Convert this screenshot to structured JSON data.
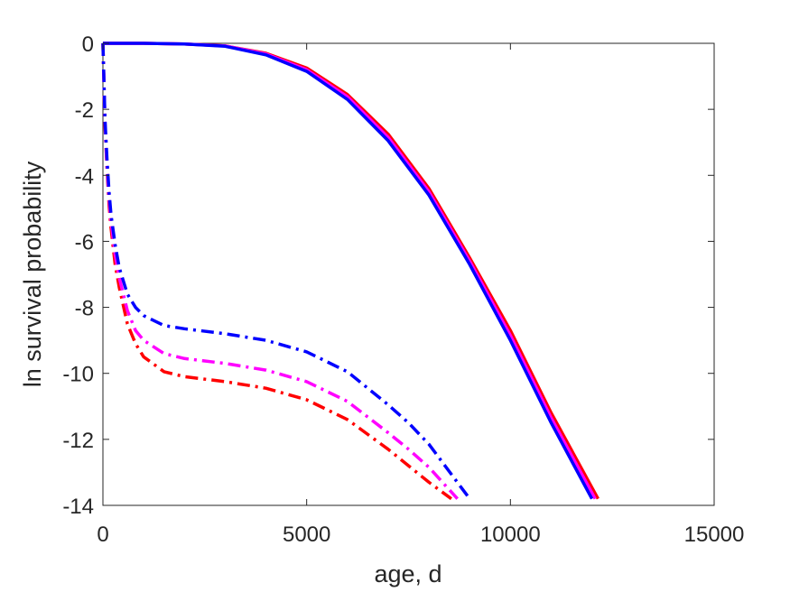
{
  "chart_data": {
    "type": "line",
    "title": "",
    "xlabel": "age, d",
    "ylabel": "ln survival probability",
    "xlim": [
      0,
      15000
    ],
    "ylim": [
      -14,
      0
    ],
    "xticks": [
      0,
      5000,
      10000,
      15000
    ],
    "yticks": [
      0,
      -2,
      -4,
      -6,
      -8,
      -10,
      -12,
      -14
    ],
    "grid": false,
    "legend": "none",
    "series": [
      {
        "color": "#ff0000",
        "style": "solid",
        "x": [
          0,
          1000,
          2000,
          3000,
          4000,
          5000,
          6000,
          7000,
          8000,
          9000,
          10000,
          11000,
          12150
        ],
        "y": [
          0,
          0,
          -0.02,
          -0.08,
          -0.3,
          -0.75,
          -1.55,
          -2.75,
          -4.4,
          -6.5,
          -8.7,
          -11.2,
          -13.8
        ]
      },
      {
        "color": "#ff00ff",
        "style": "solid",
        "x": [
          0,
          1000,
          2000,
          3000,
          4000,
          5000,
          6000,
          7000,
          8000,
          9000,
          10000,
          11000,
          12080
        ],
        "y": [
          0,
          0,
          -0.02,
          -0.08,
          -0.32,
          -0.8,
          -1.62,
          -2.85,
          -4.5,
          -6.6,
          -8.85,
          -11.35,
          -13.8
        ]
      },
      {
        "color": "#0000ff",
        "style": "solid",
        "x": [
          0,
          1000,
          2000,
          3000,
          4000,
          5000,
          6000,
          7000,
          8000,
          9000,
          10000,
          11000,
          12000
        ],
        "y": [
          0,
          0,
          -0.02,
          -0.09,
          -0.35,
          -0.85,
          -1.7,
          -2.95,
          -4.6,
          -6.7,
          -9.0,
          -11.5,
          -13.8
        ]
      },
      {
        "color": "#ff0000",
        "style": "dashdot",
        "x": [
          0,
          50,
          100,
          150,
          200,
          300,
          400,
          600,
          800,
          1000,
          1500,
          2000,
          3000,
          4000,
          5000,
          6000,
          7000,
          7500,
          8000,
          8550
        ],
        "y": [
          0,
          -2.5,
          -3.8,
          -4.9,
          -5.6,
          -6.7,
          -7.4,
          -8.5,
          -9.1,
          -9.5,
          -9.95,
          -10.1,
          -10.25,
          -10.45,
          -10.8,
          -11.4,
          -12.3,
          -12.8,
          -13.3,
          -13.8
        ]
      },
      {
        "color": "#ff00ff",
        "style": "dashdot",
        "x": [
          0,
          50,
          100,
          150,
          200,
          300,
          400,
          600,
          800,
          1000,
          1500,
          2000,
          3000,
          4000,
          5000,
          6000,
          7000,
          7500,
          8000,
          8700
        ],
        "y": [
          0,
          -2.4,
          -3.7,
          -4.7,
          -5.4,
          -6.4,
          -7.1,
          -8.1,
          -8.7,
          -9.0,
          -9.4,
          -9.55,
          -9.7,
          -9.9,
          -10.25,
          -10.85,
          -11.8,
          -12.3,
          -12.85,
          -13.8
        ]
      },
      {
        "color": "#0000ff",
        "style": "dashdot",
        "x": [
          0,
          50,
          100,
          150,
          200,
          300,
          400,
          600,
          800,
          1000,
          1500,
          2000,
          3000,
          4000,
          5000,
          6000,
          7000,
          7500,
          8000,
          9000
        ],
        "y": [
          0,
          -2.3,
          -3.5,
          -4.5,
          -5.2,
          -6.1,
          -6.8,
          -7.6,
          -8.0,
          -8.25,
          -8.55,
          -8.65,
          -8.8,
          -9.0,
          -9.35,
          -9.95,
          -10.95,
          -11.5,
          -12.15,
          -13.8
        ]
      }
    ]
  }
}
